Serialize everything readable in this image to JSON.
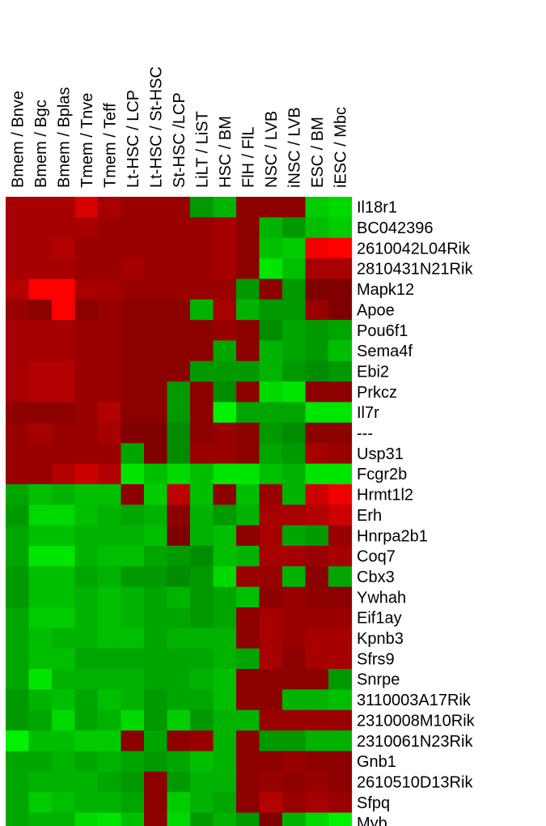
{
  "chart_data": {
    "type": "heatmap",
    "title": "",
    "xlabel": "",
    "ylabel": "",
    "columns": [
      "Bmem / Bnve",
      "Bmem / Bgc",
      "Bmem / Bplas",
      "Tmem / Tnve",
      "Tmem / Teff",
      "Lt-HSC / LCP",
      "Lt-HSC / St-HSC",
      "St-HSC /LCP",
      "LiLT / LiST",
      "HSC / BM",
      "FlH / FlL",
      "NSC / LVB",
      "iNSC / LVB",
      "ESC / BM",
      "iESC / Mbc"
    ],
    "rows": [
      "Il18r1",
      "BC042396",
      "2610042L04Rik",
      "2810431N21Rik",
      "Mapk12",
      "Apoe",
      "Pou6f1",
      "Sema4f",
      "Ebi2",
      "Prkcz",
      "Il7r",
      "---",
      "Usp31",
      "Fcgr2b",
      "Hrmt1l2",
      "Erh",
      "Hnrpa2b1",
      "Coq7",
      "Cbx3",
      "Ywhah",
      "Eif1ay",
      "Kpnb3",
      "Sfrs9",
      "Snrpe",
      "3110003A17Rik",
      "2310008M10Rik",
      "2310061N23Rik",
      "Gnb1",
      "2610510D13Rik",
      "Sfpq",
      "Myb"
    ],
    "value_range": [
      -1,
      1
    ],
    "color_scale": {
      "low": "#00ff00",
      "mid": "#000000",
      "high": "#ff0000"
    },
    "values": [
      [
        0.65,
        0.65,
        0.65,
        0.85,
        0.65,
        0.6,
        0.6,
        0.6,
        -0.6,
        -0.7,
        0.55,
        0.55,
        0.55,
        -0.8,
        -0.85
      ],
      [
        0.65,
        0.65,
        0.65,
        0.65,
        0.6,
        0.6,
        0.6,
        0.6,
        0.6,
        0.65,
        0.55,
        -0.7,
        -0.6,
        -0.75,
        -0.8
      ],
      [
        0.65,
        0.65,
        0.7,
        0.6,
        0.6,
        0.6,
        0.6,
        0.6,
        0.6,
        0.65,
        0.55,
        -0.75,
        -0.8,
        0.95,
        1.0
      ],
      [
        0.65,
        0.65,
        0.65,
        0.6,
        0.6,
        0.65,
        0.6,
        0.6,
        0.6,
        0.65,
        0.55,
        -0.9,
        -0.75,
        0.65,
        0.65
      ],
      [
        0.7,
        1.0,
        1.0,
        0.65,
        0.65,
        0.6,
        0.6,
        0.6,
        0.6,
        0.6,
        -0.6,
        0.55,
        -0.6,
        0.5,
        0.5
      ],
      [
        0.6,
        0.55,
        1.0,
        0.55,
        0.6,
        0.55,
        0.55,
        0.55,
        -0.7,
        0.65,
        -0.7,
        -0.6,
        -0.6,
        0.6,
        0.5
      ],
      [
        0.65,
        0.65,
        0.65,
        0.6,
        0.6,
        0.55,
        0.55,
        0.55,
        0.55,
        0.6,
        0.55,
        -0.55,
        -0.65,
        -0.6,
        -0.65
      ],
      [
        0.65,
        0.65,
        0.65,
        0.6,
        0.6,
        0.55,
        0.55,
        0.55,
        0.55,
        -0.65,
        0.55,
        -0.7,
        -0.65,
        -0.6,
        -0.75
      ],
      [
        0.65,
        0.7,
        0.7,
        0.6,
        0.6,
        0.55,
        0.55,
        0.55,
        -0.6,
        -0.6,
        -0.6,
        -0.7,
        -0.6,
        -0.55,
        -0.6
      ],
      [
        0.65,
        0.7,
        0.7,
        0.6,
        0.6,
        0.55,
        0.55,
        -0.6,
        0.55,
        -0.55,
        0.55,
        -0.85,
        -0.9,
        0.55,
        0.55
      ],
      [
        0.55,
        0.55,
        0.55,
        0.6,
        0.7,
        0.55,
        0.55,
        -0.6,
        0.55,
        -0.95,
        -0.65,
        -0.65,
        -0.65,
        -0.9,
        -0.9
      ],
      [
        0.6,
        0.65,
        0.6,
        0.6,
        0.65,
        0.5,
        0.5,
        -0.55,
        0.55,
        0.6,
        0.55,
        -0.6,
        -0.55,
        0.55,
        0.55
      ],
      [
        0.6,
        0.6,
        0.6,
        0.6,
        0.6,
        -0.65,
        0.5,
        -0.55,
        0.6,
        0.6,
        0.55,
        -0.65,
        -0.6,
        0.65,
        0.6
      ],
      [
        0.6,
        0.6,
        0.7,
        0.8,
        0.7,
        -0.9,
        -0.75,
        -0.85,
        -0.75,
        -0.9,
        -0.9,
        -0.75,
        -0.7,
        -0.9,
        -0.9
      ],
      [
        -0.65,
        -0.75,
        -0.7,
        -0.75,
        -0.75,
        0.55,
        -0.8,
        0.75,
        -0.75,
        0.55,
        -0.75,
        0.6,
        -0.7,
        0.8,
        0.95
      ],
      [
        -0.6,
        -0.85,
        -0.85,
        -0.75,
        -0.7,
        -0.65,
        -0.7,
        0.55,
        -0.7,
        -0.6,
        -0.7,
        0.65,
        0.65,
        0.7,
        0.8
      ],
      [
        -0.65,
        -0.75,
        -0.75,
        -0.7,
        -0.7,
        -0.7,
        -0.75,
        0.5,
        -0.7,
        -0.75,
        0.55,
        0.65,
        -0.65,
        -0.6,
        0.6
      ],
      [
        -0.65,
        -0.9,
        -0.9,
        -0.7,
        -0.75,
        -0.75,
        -0.65,
        -0.6,
        -0.55,
        -0.75,
        -0.7,
        0.65,
        0.65,
        0.6,
        0.65
      ],
      [
        -0.6,
        -0.75,
        -0.75,
        -0.65,
        -0.7,
        -0.6,
        -0.6,
        -0.55,
        -0.6,
        -0.85,
        0.6,
        0.6,
        -0.7,
        0.55,
        -0.65
      ],
      [
        -0.6,
        -0.75,
        -0.75,
        -0.7,
        -0.75,
        -0.7,
        -0.65,
        -0.7,
        -0.6,
        -0.65,
        -0.75,
        0.55,
        0.6,
        0.55,
        0.55
      ],
      [
        -0.65,
        -0.8,
        -0.8,
        -0.7,
        -0.75,
        -0.7,
        -0.65,
        -0.65,
        -0.6,
        -0.65,
        0.55,
        0.65,
        0.6,
        0.6,
        0.6
      ],
      [
        -0.65,
        -0.75,
        -0.7,
        -0.7,
        -0.75,
        -0.75,
        -0.65,
        -0.7,
        -0.7,
        -0.7,
        0.55,
        0.65,
        0.6,
        0.65,
        0.65
      ],
      [
        -0.65,
        -0.75,
        -0.75,
        -0.65,
        -0.65,
        -0.65,
        -0.65,
        -0.65,
        -0.65,
        -0.7,
        -0.65,
        0.65,
        0.55,
        0.65,
        0.65
      ],
      [
        -0.65,
        -0.9,
        -0.7,
        -0.7,
        -0.7,
        -0.7,
        -0.65,
        -0.65,
        -0.7,
        -0.75,
        0.55,
        0.55,
        0.55,
        0.55,
        -0.6
      ],
      [
        -0.6,
        -0.7,
        -0.75,
        -0.65,
        -0.75,
        -0.7,
        -0.6,
        -0.65,
        -0.65,
        -0.75,
        0.55,
        0.55,
        -0.7,
        -0.7,
        -0.75
      ],
      [
        -0.6,
        -0.65,
        -0.85,
        -0.65,
        -0.7,
        -0.85,
        -0.6,
        -0.8,
        -0.6,
        -0.7,
        -0.7,
        0.6,
        0.6,
        0.6,
        0.6
      ],
      [
        -0.95,
        -0.75,
        -0.75,
        -0.8,
        -0.8,
        0.55,
        -0.65,
        0.55,
        0.6,
        -0.7,
        0.55,
        -0.6,
        -0.6,
        -0.7,
        -0.7
      ],
      [
        -0.65,
        -0.65,
        -0.7,
        -0.65,
        -0.7,
        -0.65,
        -0.6,
        -0.65,
        -0.75,
        -0.7,
        0.55,
        0.55,
        0.6,
        0.55,
        0.55
      ],
      [
        -0.65,
        -0.7,
        -0.7,
        -0.7,
        -0.65,
        -0.6,
        0.55,
        -0.6,
        -0.7,
        -0.7,
        0.55,
        0.6,
        0.55,
        0.6,
        0.55
      ],
      [
        -0.65,
        -0.8,
        -0.75,
        -0.7,
        -0.7,
        -0.65,
        0.55,
        -0.8,
        -0.7,
        -0.65,
        0.55,
        0.7,
        0.6,
        0.65,
        0.6
      ],
      [
        -0.65,
        -0.7,
        -0.7,
        -0.85,
        -0.9,
        -0.75,
        0.55,
        -0.85,
        -0.6,
        -0.7,
        -0.6,
        0.5,
        -0.7,
        -0.85,
        -0.95
      ]
    ]
  }
}
